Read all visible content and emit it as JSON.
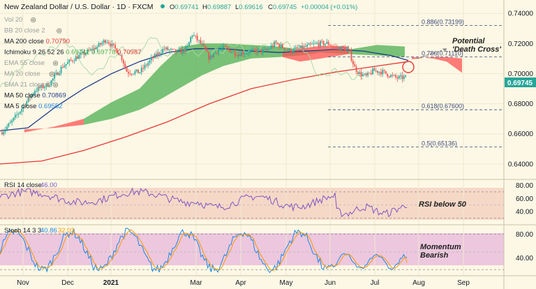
{
  "header": {
    "title": "New Zealand Dollar / U.S. Dollar · 1D · FXCM",
    "ohlc": [
      {
        "k": "O",
        "v": "0.69741"
      },
      {
        "k": "H",
        "v": "0.69887"
      },
      {
        "k": "L",
        "v": "0.69616"
      },
      {
        "k": "C",
        "v": "0.69745"
      },
      {
        "k": "",
        "v": "+0.00004 (+0.01%)"
      }
    ]
  },
  "legend": [
    {
      "label": "Vol 20",
      "value": "",
      "muted": true
    },
    {
      "label": "BB 20 close 2",
      "value": "",
      "muted": true
    },
    {
      "label": "MA 200 close",
      "value": "0.70790",
      "color": "#e53935"
    },
    {
      "label": "Ichimoku 9 26 52 26",
      "value": "0.69742",
      "value2": "0.69778",
      "value3": "0.70987",
      "color": "#4caf50"
    },
    {
      "label": "EMA 55 close",
      "value": "",
      "muted": true
    },
    {
      "label": "MA 20 close",
      "value": "",
      "muted": true
    },
    {
      "label": "EMA 21 close",
      "value": "",
      "muted": true
    },
    {
      "label": "MA 50 close",
      "value": "0.70869",
      "color": "#1e3a8a"
    },
    {
      "label": "MA 5 close",
      "value": "0.69552",
      "color": "#1e88e5"
    }
  ],
  "annotations": {
    "death_cross": "Potential\n'Death Cross'",
    "rsi": "RSI below 50",
    "stoch": "Momentum\nBearish"
  },
  "rsi_legend": {
    "label": "RSI 14 close",
    "value": "46.00"
  },
  "stoch_legend": {
    "label": "Stoch 14 3 3",
    "value_k": "40.86",
    "value_d": "32.03"
  },
  "price_tag": "0.69745",
  "colors": {
    "background": "#fdf8e5",
    "up": "#26a69a",
    "down": "#ef5350",
    "ma200": "#e53935",
    "ma50": "#1e3a8a",
    "cloud_bull": "#4caf50",
    "cloud_bear": "#ff5252",
    "rsi": "#7e57c2",
    "stoch_k": "#1e88e5",
    "stoch_d": "#ff9800"
  },
  "chart_data": {
    "type": "candlestick",
    "x_labels": [
      "Nov",
      "Dec",
      "2021",
      "Mar",
      "Apr",
      "May",
      "Jun",
      "Jul",
      "Aug",
      "Sep"
    ],
    "y_ticks": [
      "0.74000",
      "0.72000",
      "0.70000",
      "0.68000",
      "0.66000",
      "0.64000"
    ],
    "ylim": [
      0.633,
      0.747
    ],
    "fib_levels": [
      {
        "label": "0.886(0.73199)",
        "value": 0.73199
      },
      {
        "label": "0.786(0.71110)",
        "value": 0.7111
      },
      {
        "label": "0.618(0.67600)",
        "value": 0.676
      },
      {
        "label": "0.5(0.65136)",
        "value": 0.65136
      }
    ],
    "rsi": {
      "ticks": [
        80,
        60,
        40
      ],
      "ylim": [
        22,
        88
      ],
      "band": [
        30,
        70
      ],
      "last": 46.0
    },
    "stoch": {
      "ticks": [
        80,
        40
      ],
      "ylim": [
        12,
        95
      ],
      "band": [
        20,
        80
      ],
      "last_k": 40.86,
      "last_d": 32.03
    }
  }
}
